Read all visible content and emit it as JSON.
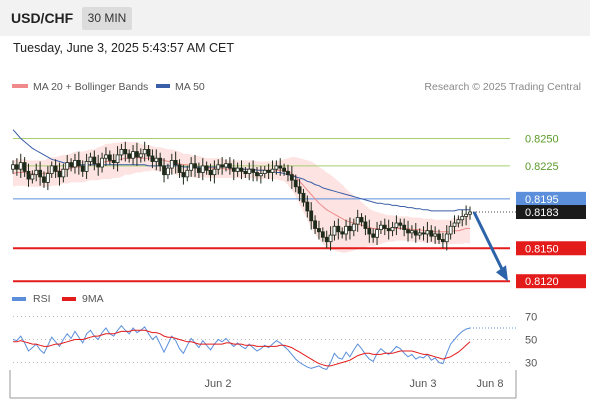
{
  "header": {
    "symbol": "USD/CHF",
    "timeframe": "30 MIN",
    "datetime": "Tuesday, June 3, 2025 5:43:57 AM CET"
  },
  "colors": {
    "ma20": "#f08a8a",
    "ma50": "#3a5ea8",
    "bollinger_fill": "#fde3e1",
    "green_level": "#a6cf6f",
    "blue_level": "#5b8fdb",
    "red_level": "#e31b1b",
    "candle": "#1f2a1a",
    "projection": "#2d63a8",
    "rsi": "#5b8fdb",
    "rsi_ma": "#e31b1b"
  },
  "chart_data": [
    {
      "type": "candlestick",
      "legend": [
        {
          "name": "MA 20 + Bollinger Bands",
          "color": "#f08a8a"
        },
        {
          "name": "MA 50",
          "color": "#3a5ea8"
        }
      ],
      "legend_placement": "top-left",
      "attribution": "Research © 2025 Trading Central",
      "ylim": [
        0.8112,
        0.8285
      ],
      "x_ticks": [
        "Jun 2",
        "Jun 3",
        "Jun 8"
      ],
      "levels": [
        {
          "value": 0.825,
          "label": "0.8250",
          "kind": "green"
        },
        {
          "value": 0.8225,
          "label": "0.8225",
          "kind": "green"
        },
        {
          "value": 0.8195,
          "label": "0.8195",
          "kind": "blue"
        },
        {
          "value": 0.8183,
          "label": "0.8183",
          "kind": "current"
        },
        {
          "value": 0.815,
          "label": "0.8150",
          "kind": "red"
        },
        {
          "value": 0.812,
          "label": "0.8120",
          "kind": "red"
        }
      ],
      "close": [
        0.8226,
        0.8222,
        0.8228,
        0.822,
        0.8213,
        0.8217,
        0.8221,
        0.8215,
        0.821,
        0.8218,
        0.8225,
        0.822,
        0.8215,
        0.8222,
        0.8228,
        0.8224,
        0.823,
        0.8225,
        0.822,
        0.8229,
        0.8233,
        0.8227,
        0.8224,
        0.8232,
        0.8235,
        0.823,
        0.8228,
        0.8235,
        0.824,
        0.8236,
        0.8232,
        0.8238,
        0.8233,
        0.8236,
        0.824,
        0.8234,
        0.8229,
        0.8232,
        0.8225,
        0.8217,
        0.8223,
        0.823,
        0.8226,
        0.8219,
        0.8215,
        0.8221,
        0.8227,
        0.8223,
        0.8219,
        0.8225,
        0.8221,
        0.8217,
        0.8222,
        0.8226,
        0.8224,
        0.8227,
        0.8223,
        0.822,
        0.8223,
        0.822,
        0.8218,
        0.8222,
        0.8219,
        0.8216,
        0.8218,
        0.8221,
        0.8219,
        0.8222,
        0.8225,
        0.8223,
        0.822,
        0.8217,
        0.8212,
        0.8206,
        0.82,
        0.8192,
        0.8184,
        0.8175,
        0.8168,
        0.8165,
        0.816,
        0.8156,
        0.8162,
        0.817,
        0.8165,
        0.8163,
        0.817,
        0.8166,
        0.8172,
        0.8178,
        0.8174,
        0.8168,
        0.8163,
        0.816,
        0.8167,
        0.8171,
        0.8168,
        0.8166,
        0.8169,
        0.8173,
        0.8171,
        0.8167,
        0.8164,
        0.8166,
        0.8162,
        0.8164,
        0.8163,
        0.8166,
        0.8161,
        0.8163,
        0.8158,
        0.8156,
        0.8163,
        0.817,
        0.8173,
        0.8176,
        0.8179,
        0.8181,
        0.8183
      ],
      "ma20": [
        0.8218,
        0.8219,
        0.8219,
        0.8219,
        0.8218,
        0.8218,
        0.8218,
        0.8218,
        0.8218,
        0.8219,
        0.822,
        0.822,
        0.8221,
        0.8222,
        0.8222,
        0.8223,
        0.8224,
        0.8224,
        0.8224,
        0.8225,
        0.8226,
        0.8226,
        0.8227,
        0.8228,
        0.8229,
        0.8229,
        0.823,
        0.823,
        0.8231,
        0.8232,
        0.8232,
        0.8232,
        0.8233,
        0.8232,
        0.8232,
        0.8232,
        0.8232,
        0.8231,
        0.8231,
        0.823,
        0.8229,
        0.8229,
        0.8228,
        0.8227,
        0.8226,
        0.8226,
        0.8225,
        0.8224,
        0.8224,
        0.8224,
        0.8223,
        0.8223,
        0.8223,
        0.8223,
        0.8223,
        0.8222,
        0.8222,
        0.8222,
        0.8222,
        0.8222,
        0.8222,
        0.8222,
        0.8222,
        0.8221,
        0.8221,
        0.8221,
        0.8221,
        0.8221,
        0.8221,
        0.8221,
        0.8221,
        0.822,
        0.8218,
        0.8215,
        0.8211,
        0.8207,
        0.8203,
        0.8199,
        0.8195,
        0.8191,
        0.8188,
        0.8185,
        0.8183,
        0.8181,
        0.8179,
        0.8177,
        0.8175,
        0.8174,
        0.8173,
        0.8172,
        0.8171,
        0.817,
        0.8169,
        0.8168,
        0.8168,
        0.8168,
        0.8168,
        0.8168,
        0.8168,
        0.8168,
        0.8168,
        0.8168,
        0.8168,
        0.8167,
        0.8167,
        0.8167,
        0.8166,
        0.8166,
        0.8166,
        0.8165,
        0.8165,
        0.8165,
        0.8165,
        0.8165,
        0.8166,
        0.8166,
        0.8167,
        0.8168,
        0.8168
      ],
      "band_width": [
        0.0012,
        0.0012,
        0.0012,
        0.0012,
        0.0012,
        0.0012,
        0.0012,
        0.0012,
        0.0012,
        0.0013,
        0.0013,
        0.0013,
        0.0013,
        0.0013,
        0.0013,
        0.0013,
        0.0014,
        0.0014,
        0.0014,
        0.0014,
        0.0014,
        0.0014,
        0.0015,
        0.0015,
        0.0016,
        0.0016,
        0.0016,
        0.0016,
        0.0016,
        0.0015,
        0.0015,
        0.0014,
        0.0014,
        0.0013,
        0.0012,
        0.0012,
        0.0011,
        0.0011,
        0.0011,
        0.0011,
        0.0011,
        0.0011,
        0.0011,
        0.0011,
        0.001,
        0.001,
        0.001,
        0.001,
        0.001,
        0.0009,
        0.0009,
        0.0009,
        0.0009,
        0.0009,
        0.0009,
        0.0008,
        0.0008,
        0.0008,
        0.0008,
        0.0008,
        0.0008,
        0.0008,
        0.0008,
        0.0008,
        0.0008,
        0.0008,
        0.0008,
        0.0008,
        0.0008,
        0.0009,
        0.001,
        0.0012,
        0.0015,
        0.0018,
        0.0021,
        0.0024,
        0.0027,
        0.003,
        0.0032,
        0.0033,
        0.0034,
        0.0034,
        0.0034,
        0.0033,
        0.0032,
        0.0031,
        0.0029,
        0.0027,
        0.0025,
        0.0023,
        0.0021,
        0.0019,
        0.0017,
        0.0016,
        0.0015,
        0.0014,
        0.0013,
        0.0012,
        0.0012,
        0.0011,
        0.0011,
        0.0011,
        0.0011,
        0.0011,
        0.0011,
        0.0011,
        0.0011,
        0.0011,
        0.0011,
        0.0011,
        0.0011,
        0.0011,
        0.0011,
        0.0011,
        0.0012,
        0.0012,
        0.0013,
        0.0013,
        0.0014
      ],
      "ma50": [
        0.8258,
        0.8254,
        0.825,
        0.8247,
        0.8244,
        0.8241,
        0.8239,
        0.8237,
        0.8235,
        0.8233,
        0.8231,
        0.823,
        0.8229,
        0.8228,
        0.8227,
        0.8227,
        0.8226,
        0.8226,
        0.8226,
        0.8226,
        0.8226,
        0.8226,
        0.8226,
        0.8226,
        0.8226,
        0.8226,
        0.8226,
        0.8226,
        0.8226,
        0.8226,
        0.8226,
        0.8226,
        0.8226,
        0.8226,
        0.8226,
        0.8225,
        0.8225,
        0.8225,
        0.8225,
        0.8225,
        0.8225,
        0.8225,
        0.8225,
        0.8225,
        0.8224,
        0.8224,
        0.8224,
        0.8224,
        0.8224,
        0.8224,
        0.8224,
        0.8224,
        0.8224,
        0.8224,
        0.8224,
        0.8224,
        0.8223,
        0.8223,
        0.8223,
        0.8222,
        0.8222,
        0.8222,
        0.8222,
        0.8221,
        0.8221,
        0.8221,
        0.822,
        0.822,
        0.8219,
        0.8219,
        0.8218,
        0.8217,
        0.8216,
        0.8215,
        0.8214,
        0.8213,
        0.8211,
        0.821,
        0.8208,
        0.8207,
        0.8205,
        0.8204,
        0.8203,
        0.8202,
        0.8201,
        0.82,
        0.8199,
        0.8198,
        0.8197,
        0.8196,
        0.8195,
        0.8194,
        0.8193,
        0.8192,
        0.8191,
        0.8191,
        0.819,
        0.819,
        0.8189,
        0.8189,
        0.8188,
        0.8188,
        0.8187,
        0.8187,
        0.8186,
        0.8186,
        0.8185,
        0.8185,
        0.8184,
        0.8184,
        0.8184,
        0.8184,
        0.8184,
        0.8184,
        0.8184,
        0.8185,
        0.8185,
        0.8185,
        0.8185
      ],
      "projection": {
        "from": 0.8183,
        "to": 0.812
      }
    },
    {
      "type": "line",
      "legend": [
        {
          "name": "RSI",
          "color": "#5b8fdb"
        },
        {
          "name": "9MA",
          "color": "#e31b1b"
        }
      ],
      "ylim": [
        20,
        80
      ],
      "y_ticks": [
        "70",
        "50",
        "30"
      ],
      "rsi": [
        50,
        49,
        53,
        47,
        40,
        43,
        46,
        41,
        38,
        45,
        52,
        48,
        44,
        50,
        55,
        51,
        57,
        52,
        47,
        55,
        58,
        53,
        50,
        56,
        60,
        55,
        53,
        58,
        62,
        58,
        55,
        60,
        56,
        58,
        61,
        55,
        50,
        53,
        46,
        39,
        46,
        53,
        49,
        42,
        38,
        45,
        51,
        47,
        43,
        49,
        45,
        41,
        46,
        50,
        48,
        51,
        47,
        44,
        47,
        44,
        42,
        46,
        43,
        40,
        42,
        45,
        43,
        46,
        49,
        47,
        44,
        41,
        37,
        33,
        30,
        28,
        26,
        25,
        26,
        27,
        25,
        24,
        30,
        38,
        34,
        33,
        39,
        35,
        41,
        46,
        42,
        37,
        33,
        31,
        38,
        42,
        39,
        37,
        40,
        44,
        42,
        38,
        35,
        37,
        33,
        35,
        34,
        37,
        32,
        34,
        30,
        29,
        38,
        46,
        50,
        54,
        57,
        59,
        60
      ],
      "rsi_ma": [
        48,
        48,
        49,
        48,
        47,
        46,
        46,
        45,
        44,
        44,
        45,
        46,
        46,
        47,
        48,
        49,
        50,
        50,
        50,
        51,
        52,
        53,
        53,
        54,
        55,
        55,
        55,
        56,
        57,
        57,
        57,
        58,
        58,
        58,
        58,
        57,
        56,
        56,
        55,
        53,
        52,
        52,
        51,
        50,
        49,
        48,
        48,
        47,
        46,
        46,
        46,
        46,
        46,
        46,
        46,
        47,
        47,
        46,
        46,
        46,
        45,
        45,
        45,
        44,
        44,
        44,
        44,
        44,
        44,
        45,
        45,
        44,
        43,
        41,
        39,
        37,
        35,
        33,
        31,
        29,
        28,
        27,
        27,
        28,
        29,
        30,
        31,
        32,
        34,
        36,
        37,
        38,
        38,
        37,
        37,
        37,
        38,
        38,
        38,
        39,
        40,
        40,
        40,
        40,
        39,
        38,
        37,
        37,
        36,
        35,
        34,
        33,
        34,
        35,
        37,
        39,
        42,
        45,
        48
      ]
    }
  ]
}
